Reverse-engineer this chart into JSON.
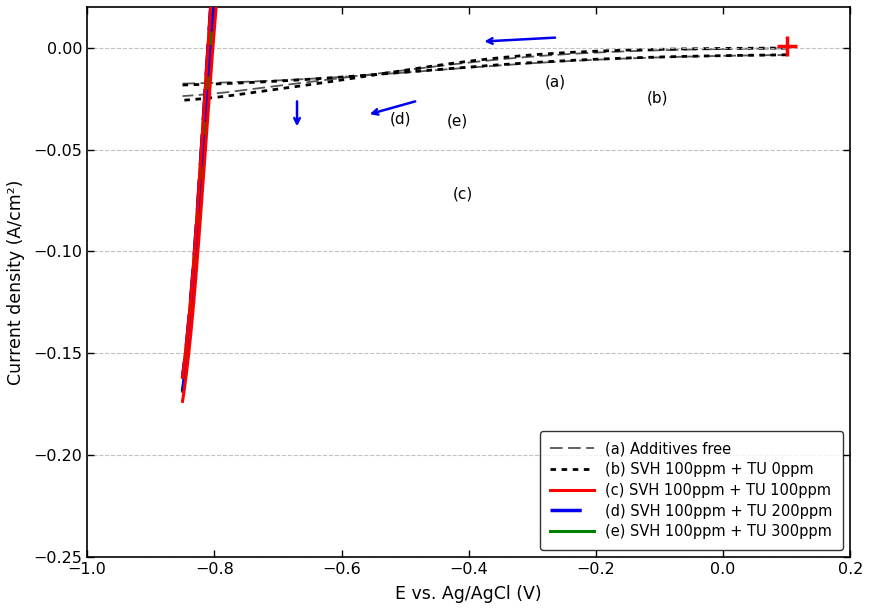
{
  "xlabel": "E vs. Ag/AgCl (V)",
  "ylabel": "Current density (A/cm²)",
  "xlim": [
    -1.0,
    0.2
  ],
  "ylim": [
    -0.25,
    0.02
  ],
  "yticks": [
    0.0,
    -0.05,
    -0.1,
    -0.15,
    -0.2,
    -0.25
  ],
  "xticks": [
    -1.0,
    -0.8,
    -0.6,
    -0.4,
    -0.2,
    0.0,
    0.2
  ],
  "grid_color": "#bbbbbb",
  "background": "#ffffff",
  "legend_labels": [
    "(a) Additives free",
    "(b) SVH 100ppm + TU 0ppm",
    "(c) SVH 100ppm + TU 100ppm",
    "(d) SVH 100ppm + TU 200ppm",
    "(e) SVH 100ppm + TU 300ppm"
  ],
  "colors": {
    "a": "#555555",
    "b": "#000000",
    "c": "#ff0000",
    "d": "#0000ee",
    "e": "#008000"
  }
}
